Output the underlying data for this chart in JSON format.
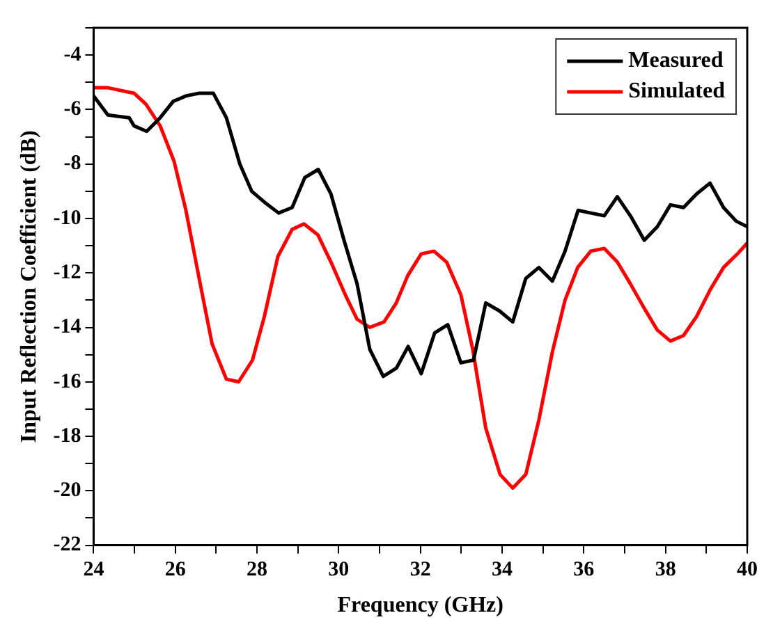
{
  "chart_data": {
    "type": "line",
    "xlabel": "Frequency (GHz)",
    "ylabel": "Input Reflection Coefficient (dB)",
    "xlim": [
      24,
      40
    ],
    "xticks": [
      24,
      {
        "value": 25,
        "label": null
      },
      26,
      {
        "value": 27,
        "label": null
      },
      28,
      {
        "value": 29,
        "label": null
      },
      30,
      {
        "value": 31,
        "label": null
      },
      32,
      {
        "value": 33,
        "label": null
      },
      34,
      {
        "value": 35,
        "label": null
      },
      36,
      {
        "value": 37,
        "label": null
      },
      38,
      {
        "value": 39,
        "label": null
      },
      40
    ],
    "ylim": [
      -22,
      -3
    ],
    "yticks": [
      -22,
      {
        "value": -21,
        "label": null
      },
      -20,
      {
        "value": -19,
        "label": null
      },
      -18,
      {
        "value": -17,
        "label": null
      },
      -16,
      {
        "value": -15,
        "label": null
      },
      -14,
      {
        "value": -13,
        "label": null
      },
      -12,
      {
        "value": -11,
        "label": null
      },
      -10,
      {
        "value": -9,
        "label": null
      },
      -8,
      {
        "value": -7,
        "label": null
      },
      -6,
      {
        "value": -5,
        "label": null
      },
      -4,
      {
        "value": -3,
        "label": null
      }
    ],
    "grid": false,
    "legend": "top right",
    "marker": "none",
    "line_style": "solid",
    "series": [
      {
        "name": "Measured",
        "color": "#000000",
        "x": [
          24,
          24.35,
          24.87,
          24.99,
          25.3,
          25.63,
          25.95,
          26.26,
          26.58,
          26.93,
          27.25,
          27.58,
          27.87,
          28.18,
          28.53,
          28.86,
          29.17,
          29.5,
          29.81,
          30.13,
          30.45,
          30.76,
          31.09,
          31.41,
          31.7,
          32.02,
          32.35,
          32.67,
          32.99,
          33.3,
          33.6,
          33.94,
          34.26,
          34.58,
          34.9,
          35.23,
          35.54,
          35.86,
          36.17,
          36.5,
          36.82,
          37.14,
          37.48,
          37.8,
          38.12,
          38.44,
          38.76,
          39.09,
          39.42,
          39.73,
          40
        ],
        "values": [
          -5.5,
          -6.2,
          -6.3,
          -6.6,
          -6.8,
          -6.3,
          -5.7,
          -5.5,
          -5.4,
          -5.4,
          -6.3,
          -8.0,
          -9.0,
          -9.4,
          -9.8,
          -9.6,
          -8.5,
          -8.2,
          -9.1,
          -10.8,
          -12.4,
          -14.8,
          -15.8,
          -15.5,
          -14.7,
          -15.7,
          -14.2,
          -13.9,
          -15.3,
          -15.2,
          -13.1,
          -13.4,
          -13.8,
          -12.2,
          -11.8,
          -12.3,
          -11.2,
          -9.7,
          -9.8,
          -9.9,
          -9.2,
          -9.9,
          -10.8,
          -10.3,
          -9.5,
          -9.6,
          -9.1,
          -8.7,
          -9.6,
          -10.1,
          -10.3
        ]
      },
      {
        "name": "Simulated",
        "color": "#ff0000",
        "x": [
          24,
          24.35,
          24.99,
          25.28,
          25.63,
          25.97,
          26.26,
          26.61,
          26.9,
          27.25,
          27.55,
          27.89,
          28.18,
          28.51,
          28.86,
          29.15,
          29.49,
          29.81,
          30.16,
          30.45,
          30.76,
          31.11,
          31.41,
          31.69,
          32.02,
          32.33,
          32.64,
          32.99,
          33.28,
          33.6,
          33.95,
          34.26,
          34.58,
          34.9,
          35.23,
          35.54,
          35.85,
          36.17,
          36.5,
          36.82,
          37.14,
          37.48,
          37.8,
          38.12,
          38.44,
          38.76,
          39.1,
          39.42,
          39.76,
          40
        ],
        "values": [
          -5.2,
          -5.2,
          -5.4,
          -5.8,
          -6.6,
          -7.9,
          -9.7,
          -12.4,
          -14.6,
          -15.9,
          -16.0,
          -15.2,
          -13.6,
          -11.4,
          -10.4,
          -10.2,
          -10.6,
          -11.6,
          -12.8,
          -13.7,
          -14.0,
          -13.8,
          -13.1,
          -12.1,
          -11.3,
          -11.2,
          -11.6,
          -12.8,
          -14.8,
          -17.7,
          -19.4,
          -19.9,
          -19.4,
          -17.4,
          -14.9,
          -13.0,
          -11.8,
          -11.2,
          -11.1,
          -11.6,
          -12.4,
          -13.3,
          -14.1,
          -14.5,
          -14.3,
          -13.6,
          -12.6,
          -11.8,
          -11.3,
          -10.9
        ]
      }
    ]
  }
}
